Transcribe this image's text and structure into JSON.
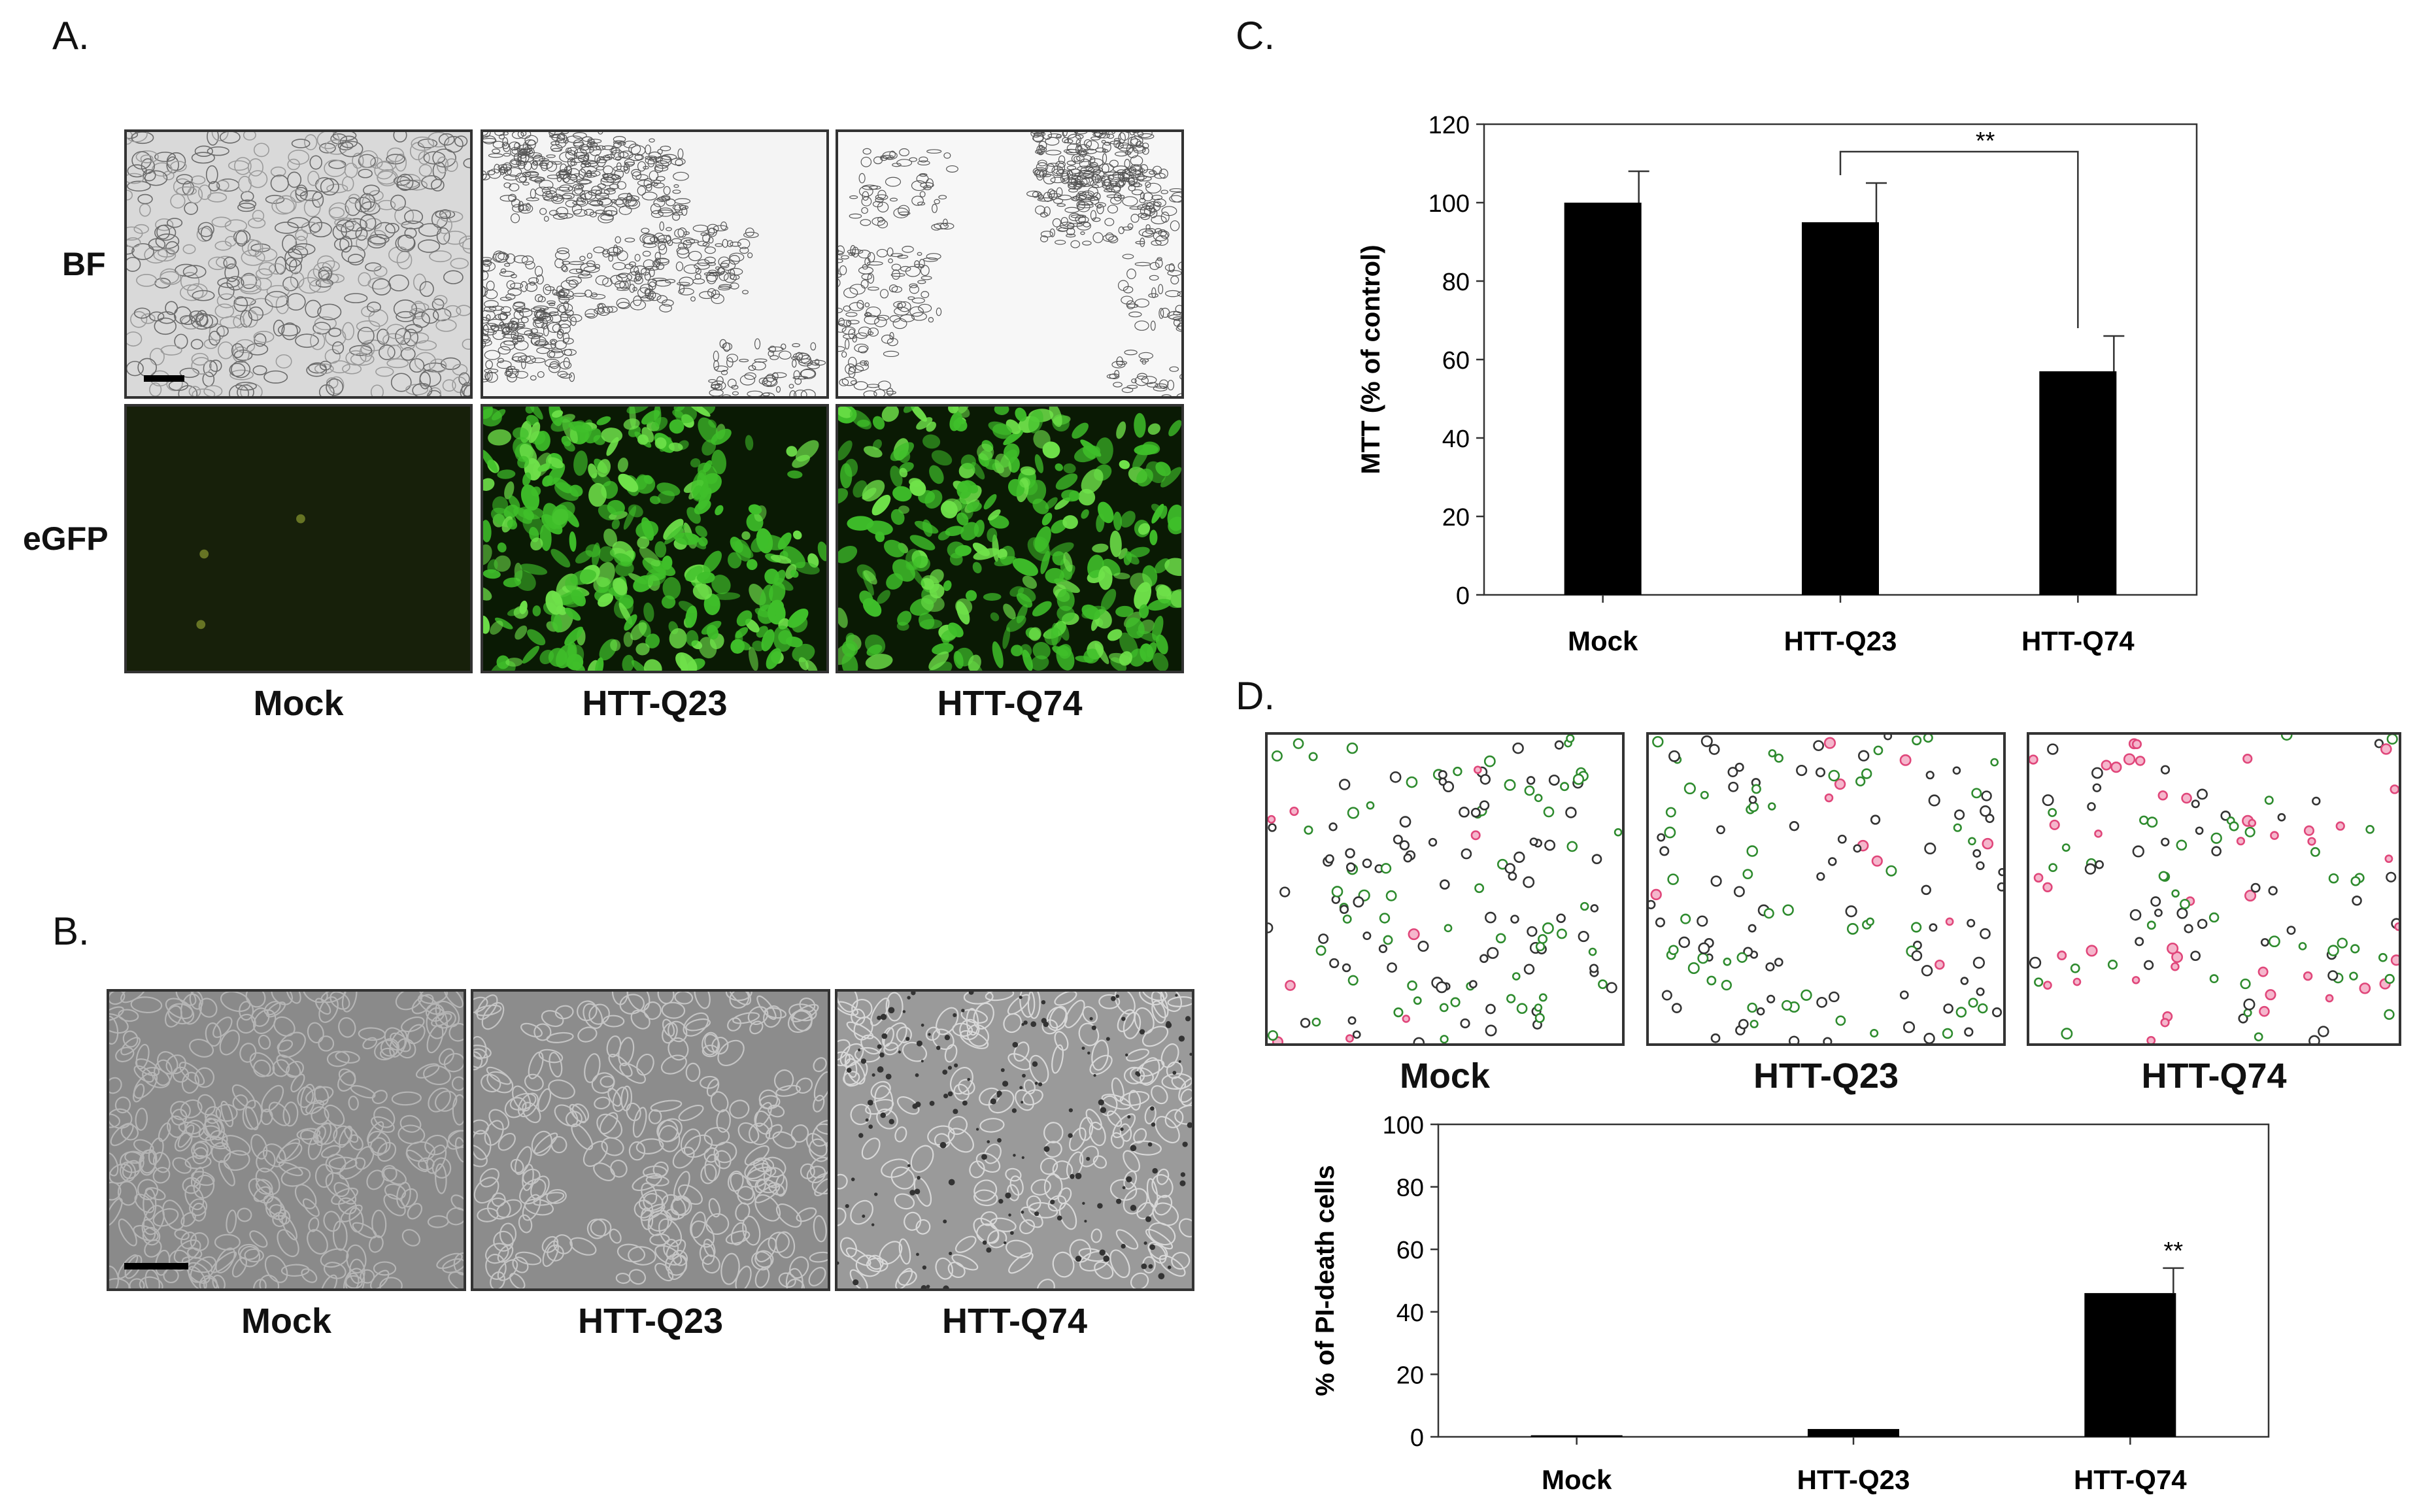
{
  "panels": {
    "A": {
      "letter": "A.",
      "row_labels": [
        "BF",
        "eGFP"
      ],
      "col_labels": [
        "Mock",
        "HTT-Q23",
        "HTT-Q74"
      ]
    },
    "B": {
      "letter": "B.",
      "col_labels": [
        "Mock",
        "HTT-Q23",
        "HTT-Q74"
      ]
    },
    "C": {
      "letter": "C."
    },
    "D": {
      "letter": "D.",
      "col_labels": [
        "Mock",
        "HTT-Q23",
        "HTT-Q74"
      ]
    }
  },
  "colors": {
    "bar": "#000000",
    "egfp_bg": "#0c1a05",
    "egfp_cell": "#3fbf2a",
    "pi_green": "#2e8b2e",
    "pi_red": "#e0467a"
  },
  "chart_data": [
    {
      "id": "C",
      "type": "bar",
      "categories": [
        "Mock",
        "HTT-Q23",
        "HTT-Q74"
      ],
      "values": [
        100,
        95,
        57
      ],
      "errors": [
        8,
        10,
        9
      ],
      "ylabel": "MTT (% of control)",
      "xlabel": "",
      "ylim": [
        0,
        120
      ],
      "yticks": [
        0,
        20,
        40,
        60,
        80,
        100,
        120
      ],
      "significance": {
        "from": 1,
        "to": 2,
        "label": "**"
      },
      "grid": false
    },
    {
      "id": "D",
      "type": "bar",
      "categories": [
        "Mock",
        "HTT-Q23",
        "HTT-Q74"
      ],
      "values": [
        0.5,
        2.5,
        46
      ],
      "errors": [
        0,
        0,
        8
      ],
      "ylabel": "% of PI-death cells",
      "xlabel": "",
      "ylim": [
        0,
        100
      ],
      "yticks": [
        0,
        20,
        40,
        60,
        80,
        100
      ],
      "annotations": [
        {
          "index": 2,
          "label": "**"
        }
      ],
      "grid": false
    }
  ]
}
